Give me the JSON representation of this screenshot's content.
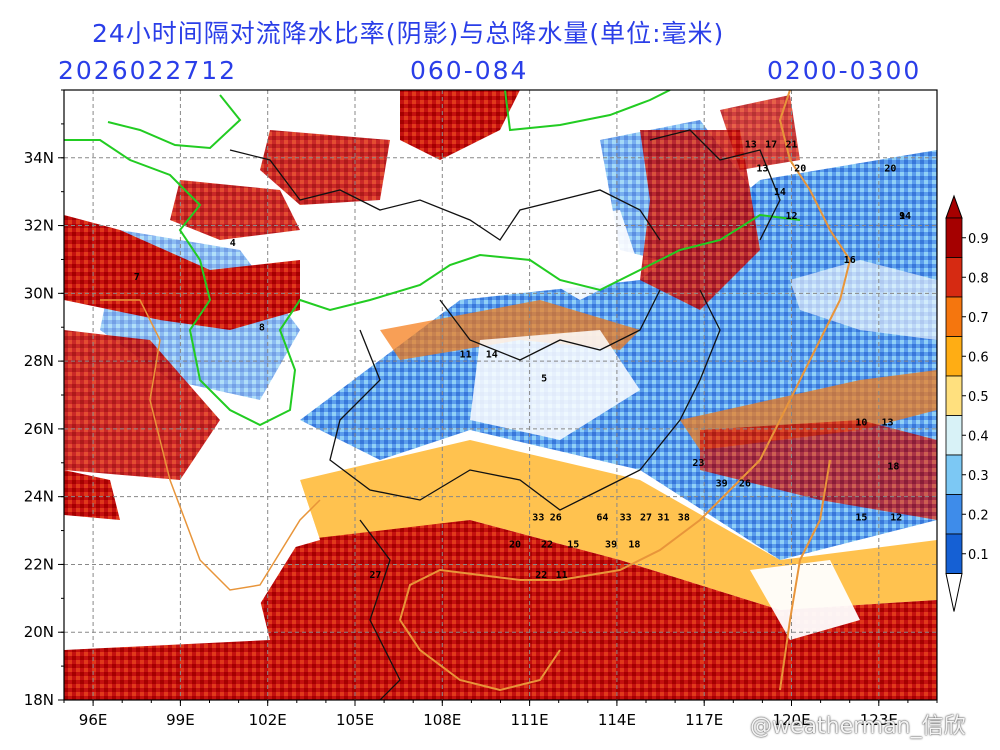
{
  "header": {
    "title": "24小时间隔对流降水比率(阴影)与总降水量(单位:毫米)",
    "date_code": "2026022712",
    "forecast_range": "060-084",
    "time_window": "0200-0300"
  },
  "axes": {
    "x_ticks": [
      "96E",
      "99E",
      "102E",
      "105E",
      "108E",
      "111E",
      "114E",
      "117E",
      "120E",
      "123E"
    ],
    "y_ticks": [
      "34N",
      "32N",
      "30N",
      "28N",
      "26N",
      "24N",
      "22N",
      "20N",
      "18N"
    ]
  },
  "colorbar": {
    "labels": [
      "0.9",
      "0.8",
      "0.7",
      "0.6",
      "0.5",
      "0.4",
      "0.3",
      "0.2",
      "0.1"
    ],
    "colors": [
      "#a50000",
      "#d62a12",
      "#f5760e",
      "#ffad14",
      "#ffe07e",
      "#d8f2f7",
      "#7cc8f4",
      "#3e8cea",
      "#1560d4"
    ]
  },
  "precip_values": [
    {
      "text": "13",
      "lon": 118.6,
      "lat": 34.3
    },
    {
      "text": "17",
      "lon": 119.3,
      "lat": 34.3
    },
    {
      "text": "21",
      "lon": 120.0,
      "lat": 34.3
    },
    {
      "text": "13",
      "lon": 119.0,
      "lat": 33.6
    },
    {
      "text": "20",
      "lon": 120.3,
      "lat": 33.6
    },
    {
      "text": "14",
      "lon": 119.6,
      "lat": 32.9
    },
    {
      "text": "12",
      "lon": 120.0,
      "lat": 32.2
    },
    {
      "text": "16",
      "lon": 122.0,
      "lat": 30.9
    },
    {
      "text": "8",
      "lon": 101.8,
      "lat": 28.9
    },
    {
      "text": "11",
      "lon": 108.8,
      "lat": 28.1
    },
    {
      "text": "14",
      "lon": 109.7,
      "lat": 28.1
    },
    {
      "text": "5",
      "lon": 111.5,
      "lat": 27.4
    },
    {
      "text": "23",
      "lon": 116.8,
      "lat": 24.9
    },
    {
      "text": "39",
      "lon": 117.6,
      "lat": 24.3
    },
    {
      "text": "26",
      "lon": 118.4,
      "lat": 24.3
    },
    {
      "text": "33",
      "lon": 111.3,
      "lat": 23.3
    },
    {
      "text": "26",
      "lon": 111.9,
      "lat": 23.3
    },
    {
      "text": "64",
      "lon": 113.5,
      "lat": 23.3
    },
    {
      "text": "33",
      "lon": 114.3,
      "lat": 23.3
    },
    {
      "text": "27",
      "lon": 115.0,
      "lat": 23.3
    },
    {
      "text": "31",
      "lon": 115.6,
      "lat": 23.3
    },
    {
      "text": "38",
      "lon": 116.3,
      "lat": 23.3
    },
    {
      "text": "20",
      "lon": 110.5,
      "lat": 22.5
    },
    {
      "text": "22",
      "lon": 111.6,
      "lat": 22.5
    },
    {
      "text": "15",
      "lon": 112.5,
      "lat": 22.5
    },
    {
      "text": "39",
      "lon": 113.8,
      "lat": 22.5
    },
    {
      "text": "18",
      "lon": 114.6,
      "lat": 22.5
    },
    {
      "text": "27",
      "lon": 105.7,
      "lat": 21.6
    },
    {
      "text": "22",
      "lon": 111.4,
      "lat": 21.6
    },
    {
      "text": "11",
      "lon": 112.1,
      "lat": 21.6
    },
    {
      "text": "15",
      "lon": 122.4,
      "lat": 23.3
    },
    {
      "text": "12",
      "lon": 123.6,
      "lat": 23.3
    },
    {
      "text": "18",
      "lon": 123.5,
      "lat": 24.8
    },
    {
      "text": "10",
      "lon": 122.4,
      "lat": 26.1
    },
    {
      "text": "13",
      "lon": 123.3,
      "lat": 26.1
    },
    {
      "text": "9",
      "lon": 123.8,
      "lat": 32.2
    },
    {
      "text": "14",
      "lon": 123.9,
      "lat": 32.2
    },
    {
      "text": "20",
      "lon": 123.4,
      "lat": 33.6
    },
    {
      "text": "7",
      "lon": 97.5,
      "lat": 30.4
    },
    {
      "text": "4",
      "lon": 100.8,
      "lat": 31.4
    }
  ],
  "watermark": "@weatherman_信欣"
}
